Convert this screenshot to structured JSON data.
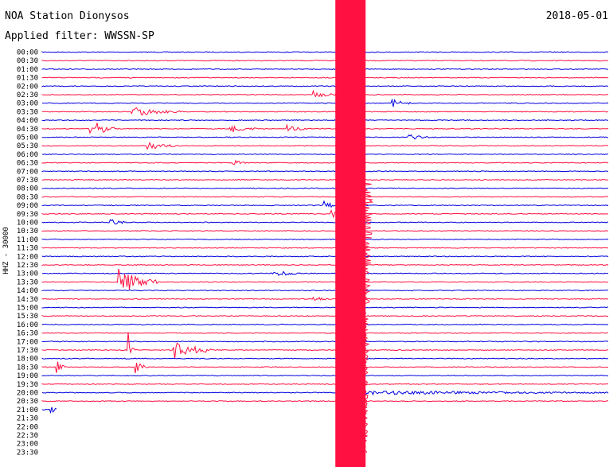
{
  "header": {
    "title": "NOA Station Dionysos",
    "filter": "Applied filter: WWSSN-SP",
    "date": "2018-05-01",
    "channel": "HHZ - 30000"
  },
  "colors": {
    "odd": "#0000e0",
    "even": "#ff1040"
  },
  "chart_data": {
    "type": "line",
    "title": "NOA Station Dionysos",
    "ylabel": "HHZ - 30000",
    "rows": [
      "00:00",
      "00:30",
      "01:00",
      "01:30",
      "02:00",
      "02:30",
      "03:00",
      "03:30",
      "04:00",
      "04:30",
      "05:00",
      "05:30",
      "06:00",
      "06:30",
      "07:00",
      "07:30",
      "08:00",
      "08:30",
      "09:00",
      "09:30",
      "10:00",
      "10:30",
      "11:00",
      "11:30",
      "12:00",
      "12:30",
      "13:00",
      "13:30",
      "14:00",
      "14:30",
      "15:00",
      "15:30",
      "16:00",
      "16:30",
      "17:00",
      "17:30",
      "18:00",
      "18:30",
      "19:00",
      "19:30",
      "20:00",
      "20:30",
      "21:00",
      "21:30",
      "22:00",
      "22:30",
      "23:00",
      "23:30"
    ],
    "trace_length_minutes": 30,
    "recorded_through": "21:00",
    "events": [
      {
        "row": "03:30",
        "minute": 4.8,
        "amp": 0.55,
        "dur": 2.5
      },
      {
        "row": "04:30",
        "minute": 2.6,
        "amp": 1.2,
        "dur": 1.2
      },
      {
        "row": "04:30",
        "minute": 10,
        "amp": 0.4,
        "dur": 1.5
      },
      {
        "row": "04:30",
        "minute": 13,
        "amp": 0.4,
        "dur": 1
      },
      {
        "row": "05:00",
        "minute": 19.5,
        "amp": 0.3,
        "dur": 1
      },
      {
        "row": "05:30",
        "minute": 5.6,
        "amp": 0.5,
        "dur": 1.5
      },
      {
        "row": "06:30",
        "minute": 10.2,
        "amp": 0.3,
        "dur": 0.8
      },
      {
        "row": "02:30",
        "minute": 14.4,
        "amp": 0.4,
        "dur": 1.2
      },
      {
        "row": "03:00",
        "minute": 18.6,
        "amp": 0.4,
        "dur": 1
      },
      {
        "row": "09:00",
        "minute": 15,
        "amp": 0.5,
        "dur": 0.6
      },
      {
        "row": "09:30",
        "minute": 15.3,
        "amp": 0.5,
        "dur": 0.8
      },
      {
        "row": "10:00",
        "minute": 3.7,
        "amp": 0.4,
        "dur": 0.8
      },
      {
        "row": "13:00",
        "minute": 12.2,
        "amp": 0.45,
        "dur": 1.5
      },
      {
        "row": "13:30",
        "minute": 4.1,
        "amp": 1.6,
        "dur": 2
      },
      {
        "row": "14:30",
        "minute": 14.4,
        "amp": 0.3,
        "dur": 0.8
      },
      {
        "row": "17:30",
        "minute": 7,
        "amp": 1.3,
        "dur": 2
      },
      {
        "row": "17:30",
        "minute": 4.6,
        "amp": 1.5,
        "dur": 0.3
      },
      {
        "row": "18:30",
        "minute": 0.8,
        "amp": 0.8,
        "dur": 0.4
      },
      {
        "row": "18:30",
        "minute": 5,
        "amp": 0.8,
        "dur": 0.6
      },
      {
        "row": "21:00",
        "minute": 0.5,
        "amp": 0.4,
        "dur": 0.6
      },
      {
        "row": "20:00",
        "minute": 16,
        "amp": 0.25,
        "dur": 14
      }
    ],
    "mainshock": {
      "row": "20:00",
      "minute": 15.6
    }
  }
}
